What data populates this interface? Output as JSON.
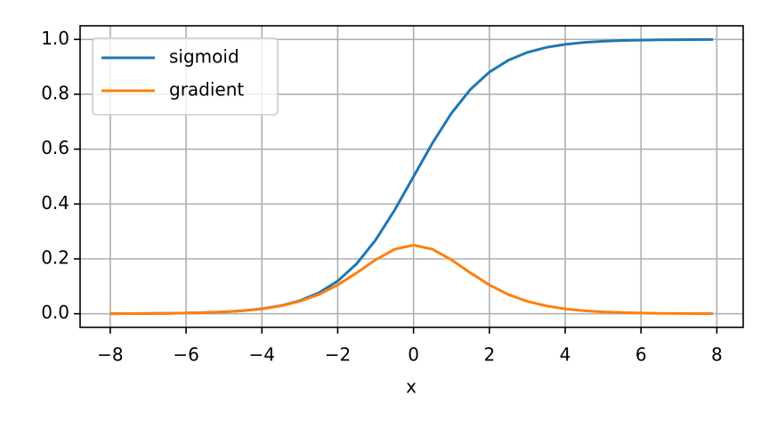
{
  "chart_data": {
    "type": "line",
    "xlabel": "x",
    "x": [
      -8,
      -7.5,
      -7,
      -6.5,
      -6,
      -5.5,
      -5,
      -4.5,
      -4,
      -3.5,
      -3,
      -2.5,
      -2,
      -1.5,
      -1,
      -0.5,
      0,
      0.5,
      1,
      1.5,
      2,
      2.5,
      3,
      3.5,
      4,
      4.5,
      5,
      5.5,
      6,
      6.5,
      7,
      7.5,
      7.9
    ],
    "series": [
      {
        "name": "sigmoid",
        "color": "#1f77b4",
        "values": [
          0.0003,
          0.0006,
          0.0009,
          0.0015,
          0.0025,
          0.0041,
          0.0067,
          0.011,
          0.018,
          0.0293,
          0.0474,
          0.0759,
          0.1192,
          0.1824,
          0.2689,
          0.3775,
          0.5,
          0.6225,
          0.7311,
          0.8176,
          0.8808,
          0.9241,
          0.9526,
          0.9707,
          0.982,
          0.989,
          0.9933,
          0.9959,
          0.9975,
          0.9985,
          0.9991,
          0.9994,
          0.9996
        ]
      },
      {
        "name": "gradient",
        "color": "#ff7f0e",
        "values": [
          0.0003,
          0.0006,
          0.0009,
          0.0015,
          0.0025,
          0.0041,
          0.0066,
          0.0109,
          0.0177,
          0.0285,
          0.0452,
          0.0701,
          0.105,
          0.1491,
          0.1966,
          0.235,
          0.25,
          0.235,
          0.1966,
          0.1491,
          0.105,
          0.0701,
          0.0452,
          0.0285,
          0.0177,
          0.0109,
          0.0066,
          0.0041,
          0.0025,
          0.0015,
          0.0009,
          0.0006,
          0.0004
        ]
      }
    ],
    "xlim": [
      -8.795,
      8.695
    ],
    "xticks": [
      {
        "value": -8,
        "label": "−8"
      },
      {
        "value": -6,
        "label": "−6"
      },
      {
        "value": -4,
        "label": "−4"
      },
      {
        "value": -2,
        "label": "−2"
      },
      0,
      2,
      4,
      6,
      8
    ],
    "ylim": [
      -0.0497,
      1.0496
    ],
    "yticks": [
      {
        "value": 0,
        "label": "0.0"
      },
      0.2,
      0.4,
      0.6,
      0.8,
      {
        "value": 1,
        "label": "1.0"
      }
    ],
    "grid": true,
    "legend": "upper left"
  }
}
